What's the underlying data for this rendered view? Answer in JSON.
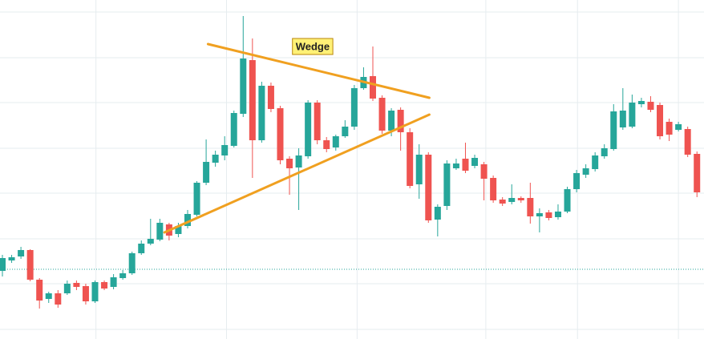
{
  "chart_data": {
    "type": "candlestick",
    "up_color": "#26a69a",
    "down_color": "#ef5350",
    "ylim": [
      0,
      423
    ],
    "xlim": [
      -0.26,
      75.76
    ],
    "yticks": [
      12,
      69,
      125,
      182,
      238,
      295,
      351,
      408
    ],
    "xticks": [
      10.1,
      24.2,
      38.3,
      52.2,
      62.1,
      73
    ],
    "grid": true,
    "price_line": {
      "value": 87,
      "color": "#26a69a"
    },
    "open": [
      85,
      98,
      103,
      111,
      74,
      50,
      57,
      57,
      70,
      66,
      47,
      71,
      65,
      76,
      82,
      107,
      119,
      124,
      143,
      131,
      141,
      155,
      195,
      220,
      229,
      241,
      281,
      348,
      248,
      316,
      288,
      225,
      214,
      228,
      295,
      248,
      239,
      253,
      265,
      313,
      328,
      301,
      260,
      286,
      258,
      193,
      230,
      149,
      166,
      213,
      225,
      216,
      218,
      201,
      174,
      171,
      176,
      176,
      153,
      158,
      152,
      159,
      187,
      205,
      212,
      228,
      237,
      264,
      265,
      293,
      296,
      292,
      271,
      261,
      262,
      231
    ],
    "high": [
      105,
      105,
      115,
      112,
      76,
      59,
      61,
      73,
      73,
      69,
      73,
      73,
      81,
      86,
      109,
      123,
      150,
      150,
      145,
      145,
      161,
      197,
      249,
      235,
      253,
      285,
      403,
      375,
      321,
      320,
      291,
      228,
      238,
      298,
      298,
      252,
      255,
      273,
      317,
      339,
      365,
      304,
      288,
      289,
      263,
      243,
      233,
      168,
      223,
      225,
      245,
      230,
      221,
      204,
      177,
      193,
      178,
      195,
      163,
      161,
      168,
      190,
      211,
      218,
      233,
      243,
      293,
      313,
      305,
      301,
      303,
      295,
      275,
      271,
      265,
      234
    ],
    "low": [
      78,
      95,
      100,
      72,
      38,
      45,
      39,
      55,
      61,
      43,
      45,
      61,
      62,
      74,
      80,
      105,
      117,
      122,
      123,
      127,
      138,
      153,
      192,
      215,
      223,
      239,
      277,
      201,
      245,
      283,
      218,
      180,
      161,
      225,
      243,
      233,
      235,
      251,
      261,
      311,
      297,
      256,
      253,
      235,
      188,
      175,
      145,
      128,
      161,
      211,
      207,
      213,
      173,
      170,
      166,
      168,
      170,
      144,
      133,
      148,
      149,
      157,
      183,
      201,
      209,
      225,
      235,
      261,
      263,
      289,
      283,
      249,
      247,
      259,
      227,
      177
    ],
    "close": [
      101,
      102,
      111,
      74,
      48,
      57,
      43,
      69,
      65,
      47,
      71,
      63,
      77,
      82,
      107,
      119,
      125,
      145,
      129,
      141,
      156,
      195,
      221,
      230,
      242,
      282,
      350,
      248,
      316,
      287,
      223,
      213,
      229,
      295,
      248,
      237,
      253,
      265,
      313,
      327,
      300,
      260,
      285,
      258,
      191,
      230,
      148,
      165,
      219,
      219,
      210,
      226,
      200,
      173,
      169,
      176,
      173,
      153,
      157,
      151,
      159,
      187,
      207,
      213,
      229,
      238,
      284,
      285,
      295,
      297,
      286,
      253,
      255,
      268,
      230,
      183
    ],
    "annotations": [
      {
        "type": "line",
        "color": "#f0a020",
        "x": [
          22.2,
          46.1
        ],
        "y": [
          368,
          301
        ]
      },
      {
        "type": "line",
        "color": "#f0a020",
        "x": [
          17.5,
          46.1
        ],
        "y": [
          133,
          280
        ]
      },
      {
        "type": "label",
        "text": "Wedge",
        "x": 33.5,
        "y": 365,
        "color": "#fff176"
      }
    ]
  }
}
